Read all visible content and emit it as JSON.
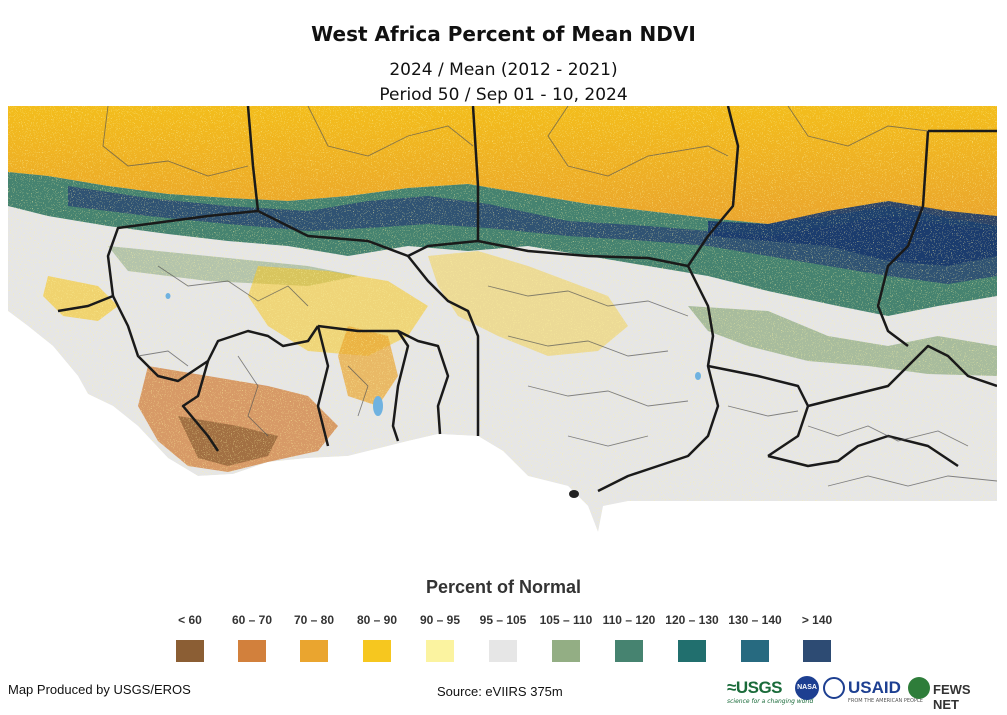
{
  "title": "West Africa Percent of Mean NDVI",
  "subtitle_line1": "2024 / Mean (2012 - 2021)",
  "subtitle_line2": "Period 50 / Sep 01 - 10, 2024",
  "legend": {
    "title": "Percent of Normal",
    "items": [
      {
        "label": "< 60",
        "color": "#8b5e34"
      },
      {
        "label": "60 – 70",
        "color": "#d2803c"
      },
      {
        "label": "70 – 80",
        "color": "#eaa52f"
      },
      {
        "label": "80 – 90",
        "color": "#f6c71f"
      },
      {
        "label": "90 – 95",
        "color": "#fbf3a0"
      },
      {
        "label": "95 – 105",
        "color": "#e6e6e6"
      },
      {
        "label": "105 – 110",
        "color": "#93ae84"
      },
      {
        "label": "110 – 120",
        "color": "#468370"
      },
      {
        "label": "120 – 130",
        "color": "#216f6e"
      },
      {
        "label": "130 – 140",
        "color": "#276a80"
      },
      {
        "label": "> 140",
        "color": "#2d4b73"
      }
    ]
  },
  "footer": {
    "producer": "Map Produced by USGS/EROS",
    "source": "Source: eVIIRS 375m"
  },
  "logos": {
    "usgs": "≈USGS",
    "usgs_tagline": "science for a changing world",
    "nasa": "NASA",
    "usaid": "USAID",
    "usaid_tagline": "FROM THE AMERICAN PEOPLE",
    "fews": "FEWS NET"
  }
}
